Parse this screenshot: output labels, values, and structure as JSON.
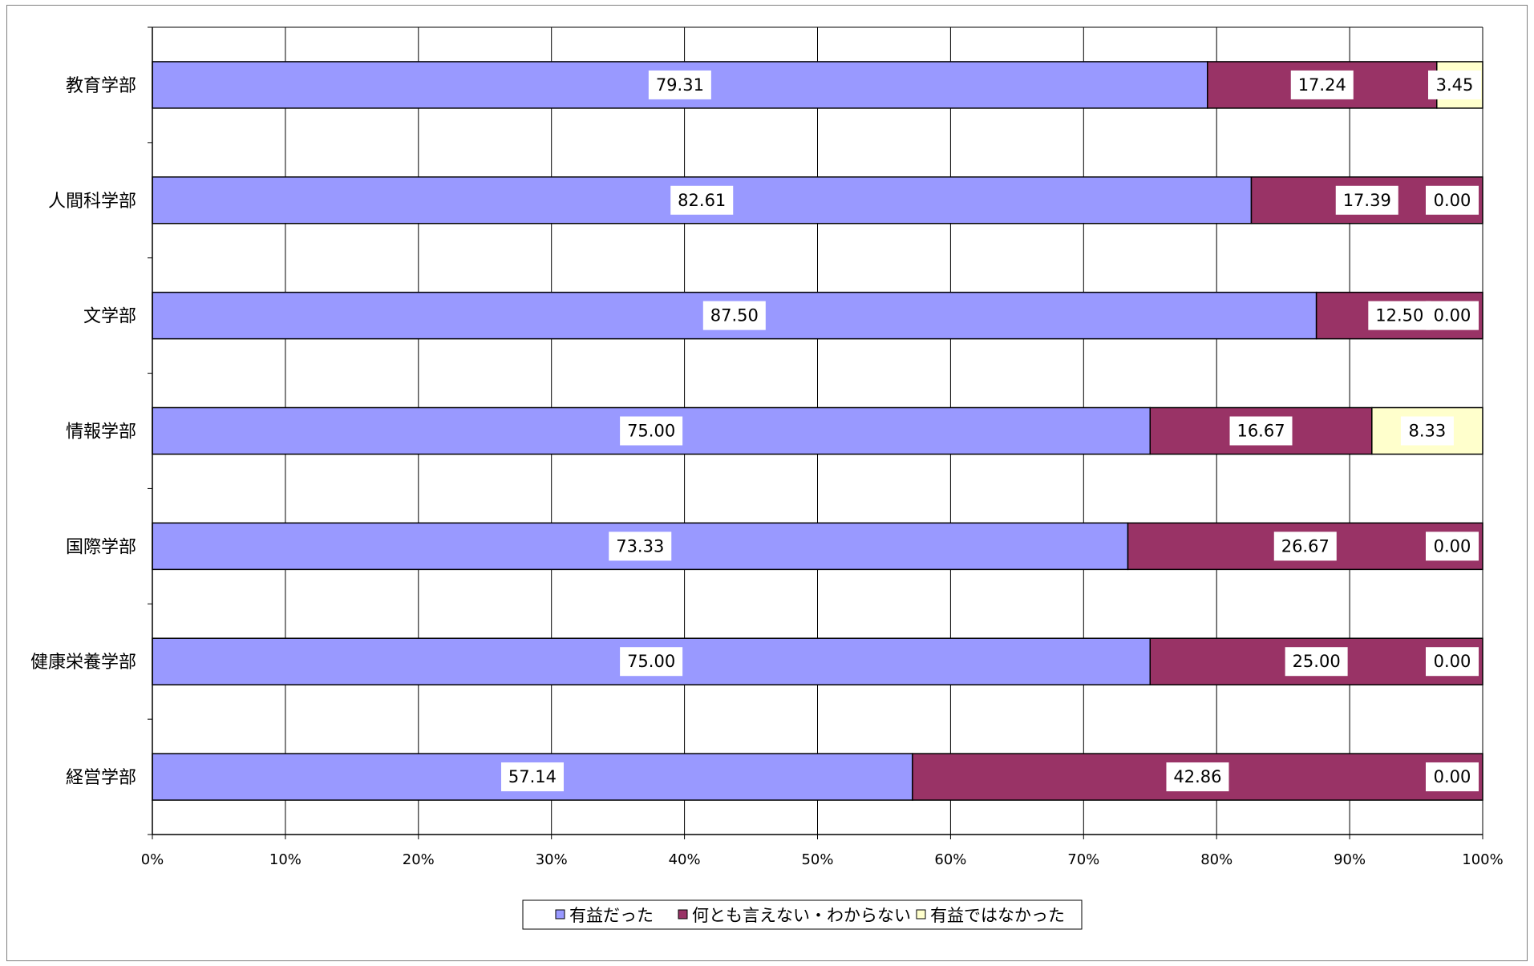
{
  "chart_data": {
    "type": "bar",
    "orientation": "horizontal",
    "stacked": "percent",
    "categories": [
      "教育学部",
      "人間科学部",
      "文学部",
      "情報学部",
      "国際学部",
      "健康栄養学部",
      "経営学部"
    ],
    "series": [
      {
        "name": "有益だった",
        "color": "#9999ff",
        "values": [
          79.31,
          82.61,
          87.5,
          75.0,
          73.33,
          75.0,
          57.14
        ],
        "labels": [
          "79.31",
          "82.61",
          "87.50",
          "75.00",
          "73.33",
          "75.00",
          "57.14"
        ]
      },
      {
        "name": "何とも言えない・わからない",
        "color": "#993366",
        "values": [
          17.24,
          17.39,
          12.5,
          16.67,
          26.67,
          25.0,
          42.86
        ],
        "labels": [
          "17.24",
          "17.39",
          "12.50",
          "16.67",
          "26.67",
          "25.00",
          "42.86"
        ]
      },
      {
        "name": "有益ではなかった",
        "color": "#ffffcc",
        "values": [
          3.45,
          0.0,
          0.0,
          8.33,
          0.0,
          0.0,
          0.0
        ],
        "labels": [
          "3.45",
          "0.00",
          "0.00",
          "8.33",
          "0.00",
          "0.00",
          "0.00"
        ]
      }
    ],
    "x_ticks": [
      "0%",
      "10%",
      "20%",
      "30%",
      "40%",
      "50%",
      "60%",
      "70%",
      "80%",
      "90%",
      "100%"
    ],
    "xlim": [
      0,
      100
    ],
    "grid": true,
    "legend_position": "bottom",
    "legend_marker": "□"
  }
}
